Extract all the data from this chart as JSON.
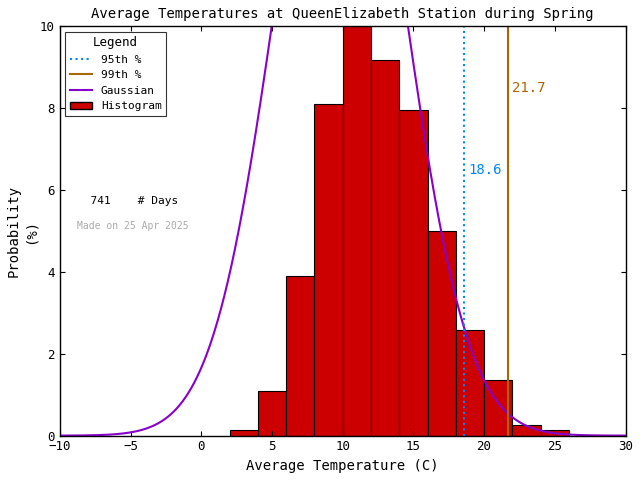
{
  "title": "Average Temperatures at QueenElizabeth Station during Spring",
  "xlabel": "Average Temperature (C)",
  "ylabel": "Probability\n(%)",
  "xlim": [
    -10,
    30
  ],
  "ylim": [
    0,
    10
  ],
  "n_days": 741,
  "mean": 9.8,
  "std": 4.5,
  "percentile_95": 18.6,
  "percentile_99": 21.7,
  "bin_edges": [
    2,
    4,
    6,
    8,
    10,
    12,
    14,
    16,
    18,
    20,
    22,
    24
  ],
  "bin_probs": [
    0.13,
    1.08,
    3.91,
    8.09,
    10.0,
    9.18,
    7.96,
    5.0,
    2.57,
    1.35,
    0.27,
    0.13
  ],
  "bar_color": "#cc0000",
  "bar_edgecolor": "#000000",
  "gaussian_color": "#8800cc",
  "p95_color": "#0088ff",
  "p99_color": "#aa6600",
  "p95_label": "18.6",
  "p99_label": "21.7",
  "legend_title": "Legend",
  "date_label": "Made on 25 Apr 2025",
  "background_color": "#ffffff",
  "xticks": [
    -10,
    -5,
    0,
    5,
    10,
    15,
    20,
    25,
    30
  ],
  "yticks": [
    0,
    2,
    4,
    6,
    8,
    10
  ]
}
